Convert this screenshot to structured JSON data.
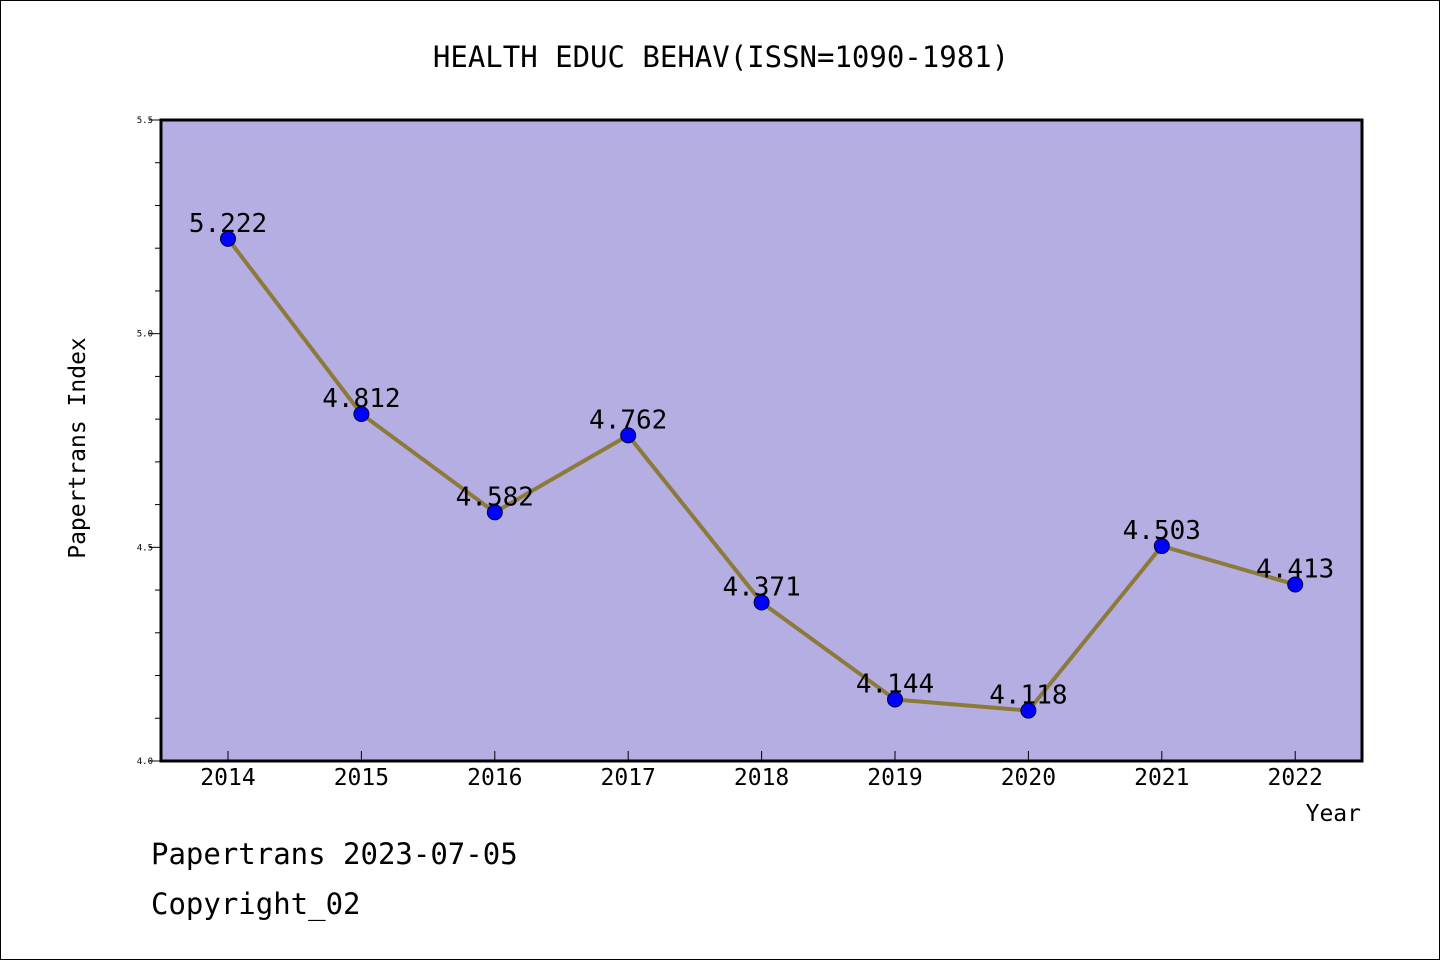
{
  "chart_data": {
    "type": "line",
    "title": "HEALTH EDUC BEHAV(ISSN=1090-1981)",
    "xlabel": "Year",
    "ylabel": "Papertrans Index",
    "categories": [
      "2014",
      "2015",
      "2016",
      "2017",
      "2018",
      "2019",
      "2020",
      "2021",
      "2022"
    ],
    "values": [
      5.222,
      4.812,
      4.582,
      4.762,
      4.371,
      4.144,
      4.118,
      4.503,
      4.413
    ],
    "data_labels": [
      "5.222",
      "4.812",
      "4.582",
      "4.762",
      "4.371",
      "4.144",
      "4.118",
      "4.503",
      "4.413"
    ],
    "ylim": [
      4.0,
      5.5
    ],
    "y_ticks": [
      "4.0",
      "4.5",
      "5.0",
      "5.5"
    ],
    "grid": false,
    "colors": {
      "plot_background": "#b4aee2",
      "line": "#8c7a3a",
      "marker": "#0000ff"
    }
  },
  "footer": {
    "line1": "Papertrans 2023-07-05",
    "line2": "Copyright_02"
  }
}
